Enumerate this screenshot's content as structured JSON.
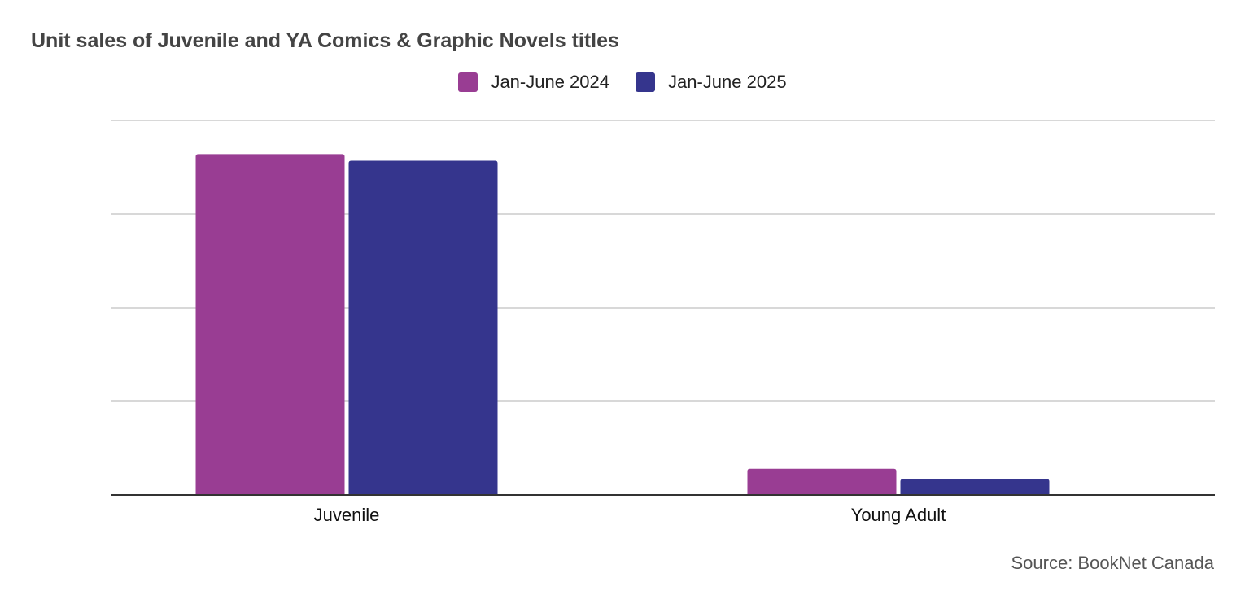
{
  "chart_data": {
    "type": "bar",
    "title": "Unit sales of Juvenile and YA Comics & Graphic Novels titles",
    "categories": [
      "Juvenile",
      "Young Adult"
    ],
    "series": [
      {
        "name": "Jan-June 2024",
        "color": "#993d93",
        "values": [
          364,
          28
        ]
      },
      {
        "name": "Jan-June 2025",
        "color": "#35358d",
        "values": [
          357,
          17
        ]
      }
    ],
    "ylim": [
      0,
      400
    ],
    "yticks": [
      0,
      100,
      200,
      300,
      400
    ],
    "ytick_labels_visible": false,
    "grid": true,
    "legend": "top-center",
    "xlabel": "",
    "ylabel": ""
  },
  "source": "Source: BookNet Canada"
}
